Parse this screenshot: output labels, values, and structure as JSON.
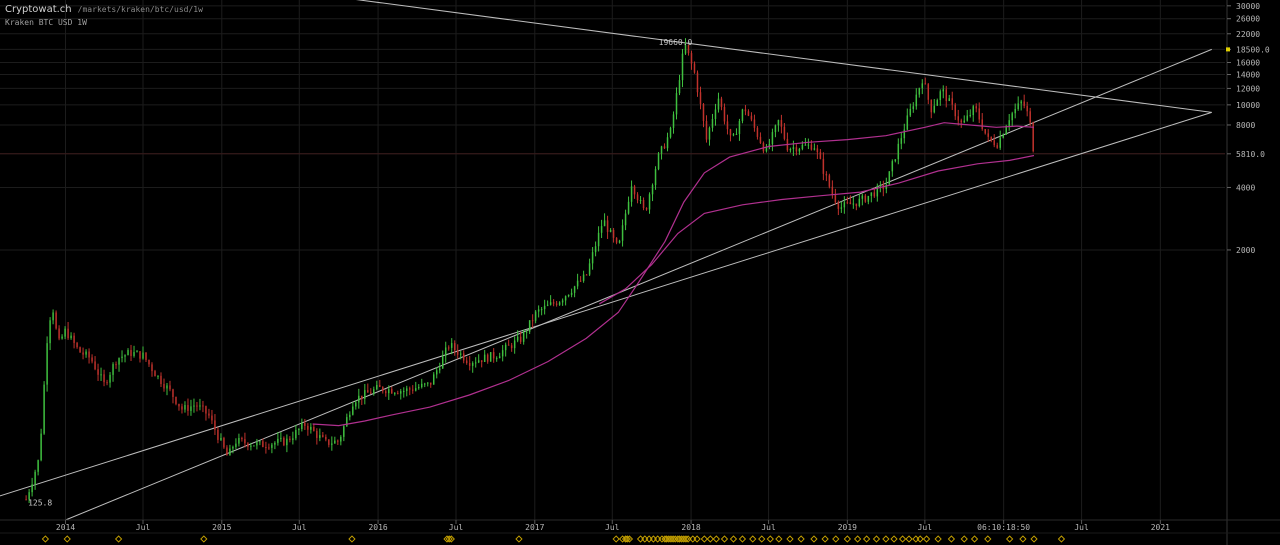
{
  "header": {
    "site": "Cryptowat.ch",
    "path": "/markets/kraken/btc/usd/1w",
    "market": "Kraken BTC USD 1W"
  },
  "colors": {
    "background": "#000000",
    "grid": "#1c1c1c",
    "up": "#3fbf3f",
    "down": "#c0322c",
    "trendline": "#bdbdbd",
    "moving_average": "#b0308f",
    "event_marker": "#c9a400",
    "price_marker": "#e0d000"
  },
  "chart_data": {
    "type": "candlestick",
    "title": "Kraken BTC USD 1W",
    "y_scale": "log",
    "ylim": [
      100,
      32000
    ],
    "x_range": [
      "2013-08",
      "2021-06"
    ],
    "y_ticks": [
      "30000",
      "26000",
      "22000",
      "18500.0",
      "16000",
      "14000",
      "12000",
      "10000",
      "8000",
      "5810.0",
      "4000",
      "2000"
    ],
    "x_ticks": [
      "2014",
      "Jul",
      "2015",
      "Jul",
      "2016",
      "Jul",
      "2017",
      "Jul",
      "2018",
      "Jul",
      "2019",
      "Jul",
      "06:10:18:50",
      "Jul",
      "2021"
    ],
    "annotations": {
      "high_label": "19660.0",
      "low_label": "125.8",
      "last_price": "5810.0",
      "marker_price": "18500.0"
    },
    "price_path": [
      [
        "2013-10-01",
        125.8
      ],
      [
        "2013-11-01",
        200
      ],
      [
        "2013-11-20",
        800
      ],
      [
        "2013-12-01",
        1100
      ],
      [
        "2013-12-15",
        700
      ],
      [
        "2014-01-01",
        820
      ],
      [
        "2014-02-01",
        650
      ],
      [
        "2014-03-01",
        600
      ],
      [
        "2014-04-01",
        450
      ],
      [
        "2014-05-01",
        600
      ],
      [
        "2014-06-01",
        640
      ],
      [
        "2014-07-01",
        620
      ],
      [
        "2014-08-01",
        500
      ],
      [
        "2014-09-01",
        420
      ],
      [
        "2014-10-01",
        340
      ],
      [
        "2014-11-01",
        360
      ],
      [
        "2014-12-01",
        320
      ],
      [
        "2015-01-15",
        200
      ],
      [
        "2015-02-01",
        240
      ],
      [
        "2015-04-01",
        230
      ],
      [
        "2015-06-01",
        240
      ],
      [
        "2015-07-15",
        290
      ],
      [
        "2015-09-01",
        235
      ],
      [
        "2015-10-01",
        240
      ],
      [
        "2015-11-05",
        380
      ],
      [
        "2016-01-01",
        430
      ],
      [
        "2016-03-01",
        420
      ],
      [
        "2016-05-01",
        450
      ],
      [
        "2016-06-15",
        700
      ],
      [
        "2016-08-01",
        580
      ],
      [
        "2016-10-01",
        620
      ],
      [
        "2016-12-01",
        750
      ],
      [
        "2017-01-05",
        1000
      ],
      [
        "2017-03-01",
        1150
      ],
      [
        "2017-05-01",
        1500
      ],
      [
        "2017-06-10",
        2800
      ],
      [
        "2017-07-15",
        2000
      ],
      [
        "2017-08-15",
        4200
      ],
      [
        "2017-09-15",
        3000
      ],
      [
        "2017-10-15",
        5500
      ],
      [
        "2017-11-15",
        7500
      ],
      [
        "2017-12-17",
        19660
      ],
      [
        "2018-01-10",
        14000
      ],
      [
        "2018-02-06",
        6800
      ],
      [
        "2018-03-05",
        11000
      ],
      [
        "2018-04-06",
        6500
      ],
      [
        "2018-05-05",
        9800
      ],
      [
        "2018-06-25",
        5900
      ],
      [
        "2018-07-25",
        8400
      ],
      [
        "2018-08-15",
        6200
      ],
      [
        "2018-10-15",
        6400
      ],
      [
        "2018-11-25",
        3800
      ],
      [
        "2018-12-15",
        3200
      ],
      [
        "2019-02-01",
        3450
      ],
      [
        "2019-04-01",
        4100
      ],
      [
        "2019-05-15",
        7900
      ],
      [
        "2019-06-26",
        13500
      ],
      [
        "2019-07-15",
        9500
      ],
      [
        "2019-08-10",
        11800
      ],
      [
        "2019-09-26",
        8000
      ],
      [
        "2019-10-26",
        9700
      ],
      [
        "2019-11-25",
        6800
      ],
      [
        "2019-12-18",
        6500
      ],
      [
        "2020-01-15",
        8800
      ],
      [
        "2020-02-14",
        10400
      ],
      [
        "2020-03-01",
        8600
      ],
      [
        "2020-03-12",
        5810
      ]
    ],
    "moving_average_1": [
      [
        "2015-08-01",
        290
      ],
      [
        "2015-10-01",
        285
      ],
      [
        "2015-12-01",
        300
      ],
      [
        "2016-02-01",
        320
      ],
      [
        "2016-05-01",
        350
      ],
      [
        "2016-08-01",
        400
      ],
      [
        "2016-11-01",
        470
      ],
      [
        "2017-02-01",
        580
      ],
      [
        "2017-05-01",
        750
      ],
      [
        "2017-07-15",
        1000
      ],
      [
        "2017-09-01",
        1400
      ],
      [
        "2017-11-01",
        2200
      ],
      [
        "2017-12-15",
        3400
      ],
      [
        "2018-02-01",
        4700
      ],
      [
        "2018-04-01",
        5600
      ],
      [
        "2018-07-01",
        6300
      ],
      [
        "2018-10-01",
        6600
      ],
      [
        "2019-01-01",
        6800
      ],
      [
        "2019-04-01",
        7100
      ],
      [
        "2019-07-01",
        7800
      ],
      [
        "2019-08-15",
        8200
      ],
      [
        "2019-10-15",
        8000
      ],
      [
        "2019-12-15",
        7800
      ],
      [
        "2020-02-01",
        7900
      ],
      [
        "2020-03-12",
        7800
      ]
    ],
    "moving_average_2": [
      [
        "2017-06-01",
        1100
      ],
      [
        "2017-08-01",
        1300
      ],
      [
        "2017-10-01",
        1700
      ],
      [
        "2017-12-01",
        2400
      ],
      [
        "2018-02-01",
        3000
      ],
      [
        "2018-05-01",
        3300
      ],
      [
        "2018-08-01",
        3500
      ],
      [
        "2018-11-01",
        3650
      ],
      [
        "2019-02-01",
        3800
      ],
      [
        "2019-05-01",
        4200
      ],
      [
        "2019-08-01",
        4800
      ],
      [
        "2019-11-01",
        5200
      ],
      [
        "2020-01-15",
        5400
      ],
      [
        "2020-03-12",
        5700
      ]
    ],
    "trendlines": [
      [
        [
          "2013-01-01",
          95
        ],
        [
          "2021-05-01",
          9200
        ]
      ],
      [
        [
          "2014-01-01",
          100
        ],
        [
          "2021-05-01",
          18500
        ]
      ],
      [
        [
          "2015-10-01",
          33000
        ],
        [
          "2021-05-01",
          9200
        ]
      ]
    ],
    "event_markers": [
      "2013-11-15",
      "2014-01-05",
      "2014-05-05",
      "2014-11-20",
      "2015-11-01",
      "2016-06-10",
      "2016-06-15",
      "2016-06-20",
      "2016-11-25",
      "2017-07-10",
      "2017-07-25",
      "2017-08-01",
      "2017-08-05",
      "2017-08-10",
      "2017-09-05",
      "2017-09-15",
      "2017-09-25",
      "2017-10-05",
      "2017-10-15",
      "2017-10-25",
      "2017-11-01",
      "2017-11-05",
      "2017-11-10",
      "2017-11-15",
      "2017-11-20",
      "2017-11-25",
      "2017-12-01",
      "2017-12-05",
      "2017-12-10",
      "2017-12-15",
      "2017-12-20",
      "2017-12-25",
      "2018-01-05",
      "2018-01-15",
      "2018-02-01",
      "2018-02-15",
      "2018-03-01",
      "2018-03-20",
      "2018-04-10",
      "2018-05-01",
      "2018-05-25",
      "2018-06-15",
      "2018-07-05",
      "2018-07-25",
      "2018-08-20",
      "2018-09-15",
      "2018-10-15",
      "2018-11-10",
      "2018-12-05",
      "2019-01-01",
      "2019-01-25",
      "2019-02-15",
      "2019-03-10",
      "2019-04-01",
      "2019-04-20",
      "2019-05-10",
      "2019-05-25",
      "2019-06-10",
      "2019-06-20",
      "2019-07-05",
      "2019-08-01",
      "2019-09-01",
      "2019-10-01",
      "2019-10-25",
      "2019-11-25",
      "2020-01-15",
      "2020-02-15",
      "2020-03-12",
      "2020-05-15"
    ]
  }
}
